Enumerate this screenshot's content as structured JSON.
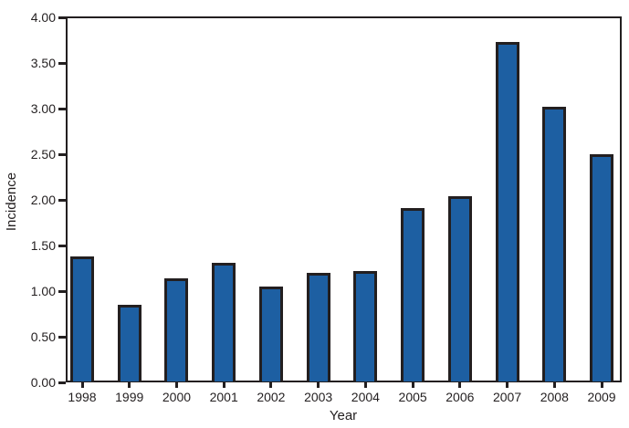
{
  "chart_data": {
    "type": "bar",
    "title": "",
    "xlabel": "Year",
    "ylabel": "Incidence",
    "categories": [
      "1998",
      "1999",
      "2000",
      "2001",
      "2002",
      "2003",
      "2004",
      "2005",
      "2006",
      "2007",
      "2008",
      "2009"
    ],
    "values": [
      1.37,
      0.84,
      1.13,
      1.3,
      1.04,
      1.19,
      1.21,
      1.9,
      2.03,
      3.72,
      3.01,
      2.49
    ],
    "ylim": [
      0,
      4
    ],
    "ytick_labels": [
      "0.00",
      "0.50",
      "1.00",
      "1.50",
      "2.00",
      "2.50",
      "3.00",
      "3.50",
      "4.00"
    ],
    "grid": false,
    "legend_position": "none",
    "colors": {
      "bar_fill": "#1d5fa2",
      "bar_border": "#231f20",
      "axis": "#231f20",
      "text": "#231f20",
      "background": "#ffffff"
    }
  }
}
